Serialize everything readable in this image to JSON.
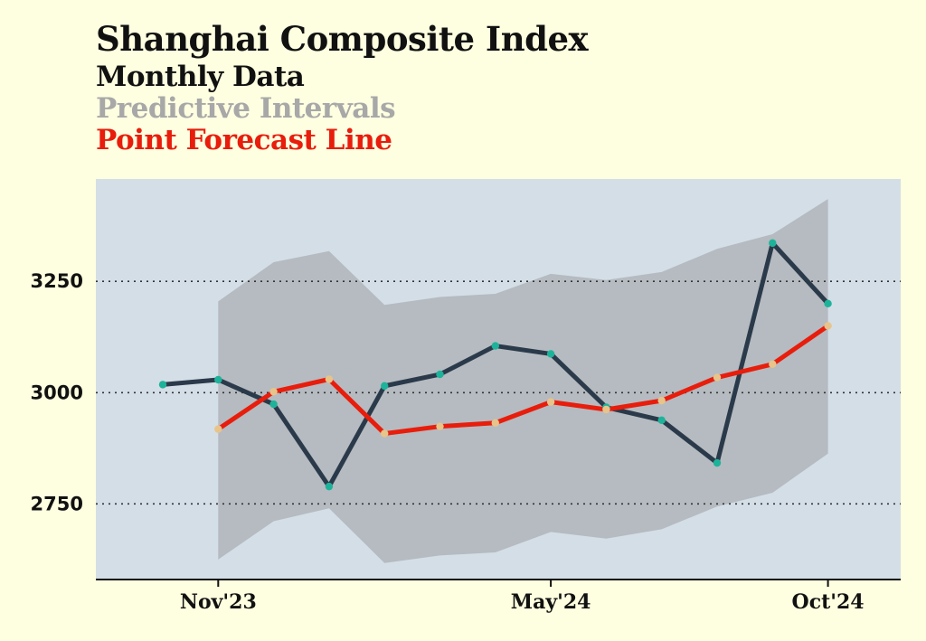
{
  "chart_data": {
    "type": "line",
    "title": "Shanghai Composite Index",
    "legend": [
      {
        "name": "Monthly Data",
        "color": "#111111"
      },
      {
        "name": "Predictive Intervals",
        "color": "#a8a8a8"
      },
      {
        "name": "Point Forecast Line",
        "color": "#e81d0c"
      }
    ],
    "x_tick_labels": [
      "Nov'23",
      "May'24",
      "Oct'24"
    ],
    "x_tick_indices": [
      1,
      7,
      12
    ],
    "y_ticks": [
      2750,
      3000,
      3250
    ],
    "ylim": [
      2580,
      3480
    ],
    "n_points": 13,
    "series": [
      {
        "name": "Monthly Data",
        "color": "#2b3a4a",
        "marker_color": "#1db39a",
        "values": [
          3018,
          3029,
          2974,
          2789,
          3015,
          3041,
          3105,
          3087,
          2967,
          2938,
          2842,
          3336,
          3200
        ]
      },
      {
        "name": "Point Forecast Line",
        "color": "#e81d0c",
        "marker_color": "#e8c48a",
        "start_index": 1,
        "values": [
          2918,
          3002,
          3030,
          2908,
          2924,
          2932,
          2979,
          2962,
          2982,
          3034,
          3064,
          3150
        ]
      }
    ],
    "interval": {
      "name": "Predictive Intervals",
      "start_index": 1,
      "upper": [
        3205,
        3293,
        3318,
        3197,
        3215,
        3222,
        3267,
        3253,
        3271,
        3323,
        3356,
        3435
      ],
      "lower": [
        2625,
        2711,
        2740,
        2617,
        2634,
        2641,
        2687,
        2672,
        2693,
        2744,
        2775,
        2863
      ]
    }
  }
}
